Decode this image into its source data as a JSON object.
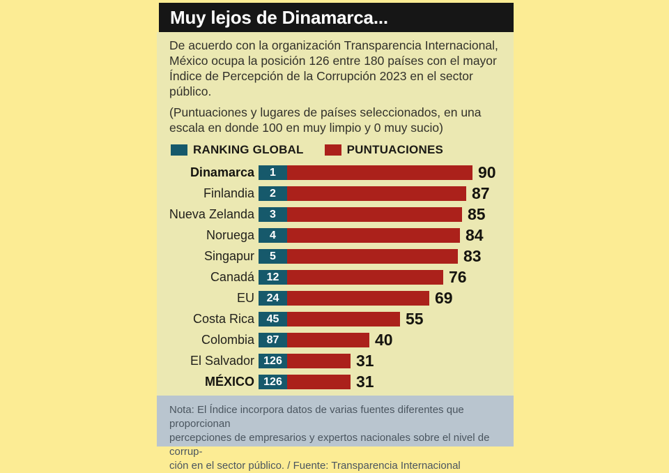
{
  "header": {
    "title": "Muy lejos de Dinamarca..."
  },
  "intro": {
    "paragraph1": "De acuerdo con la organización Transparencia Internacional, México ocupa la posición 126 entre 180 países con el mayor Índice de Percepción de la Corrupción 2023 en el sector público.",
    "paragraph2": "(Puntuaciones y lugares de países seleccionados, en una escala en donde 100 en muy limpio y 0 muy sucio)"
  },
  "legend": {
    "ranking_label": "RANKING GLOBAL",
    "score_label": "PUNTUACIONES"
  },
  "chart_data": {
    "type": "bar",
    "orientation": "horizontal",
    "title": "Muy lejos de Dinamarca...",
    "categories": [
      "Dinamarca",
      "Finlandia",
      "Nueva Zelanda",
      "Noruega",
      "Singapur",
      "Canadá",
      "EU",
      "Costa Rica",
      "Colombia",
      "El Salvador",
      "MÉXICO"
    ],
    "series": [
      {
        "name": "RANKING GLOBAL",
        "values": [
          1,
          2,
          3,
          4,
          5,
          12,
          24,
          45,
          87,
          126,
          126
        ]
      },
      {
        "name": "PUNTUACIONES",
        "values": [
          90,
          87,
          85,
          84,
          83,
          76,
          69,
          55,
          40,
          31,
          31
        ]
      }
    ],
    "score_range": [
      0,
      100
    ],
    "legend_position": "top",
    "grid": false,
    "rows": [
      {
        "country": "Dinamarca",
        "rank": "1",
        "score": 90,
        "emphasis": true
      },
      {
        "country": "Finlandia",
        "rank": "2",
        "score": 87,
        "emphasis": false
      },
      {
        "country": "Nueva Zelanda",
        "rank": "3",
        "score": 85,
        "emphasis": false
      },
      {
        "country": "Noruega",
        "rank": "4",
        "score": 84,
        "emphasis": false
      },
      {
        "country": "Singapur",
        "rank": "5",
        "score": 83,
        "emphasis": false
      },
      {
        "country": "Canadá",
        "rank": "12",
        "score": 76,
        "emphasis": false
      },
      {
        "country": "EU",
        "rank": "24",
        "score": 69,
        "emphasis": false
      },
      {
        "country": "Costa Rica",
        "rank": "45",
        "score": 55,
        "emphasis": false
      },
      {
        "country": "Colombia",
        "rank": "87",
        "score": 40,
        "emphasis": false
      },
      {
        "country": "El Salvador",
        "rank": "126",
        "score": 31,
        "emphasis": false
      },
      {
        "country": "MÉXICO",
        "rank": "126",
        "score": 31,
        "emphasis": true
      }
    ]
  },
  "note": {
    "lines": [
      "Nota: El Índice incorpora datos de varias fuentes diferentes que proporcionan",
      "percepciones de empresarios y expertos nacionales sobre el nivel de corrup-",
      "ción en el sector público. / Fuente: Transparencia Internacional"
    ]
  },
  "colors": {
    "teal": "#16596b",
    "red": "#ab211b",
    "outer_bg": "#fcec94",
    "panel_bg": "#ebe8b2",
    "titlebar_bg": "#161616",
    "note_bg": "#b9c5cf"
  }
}
